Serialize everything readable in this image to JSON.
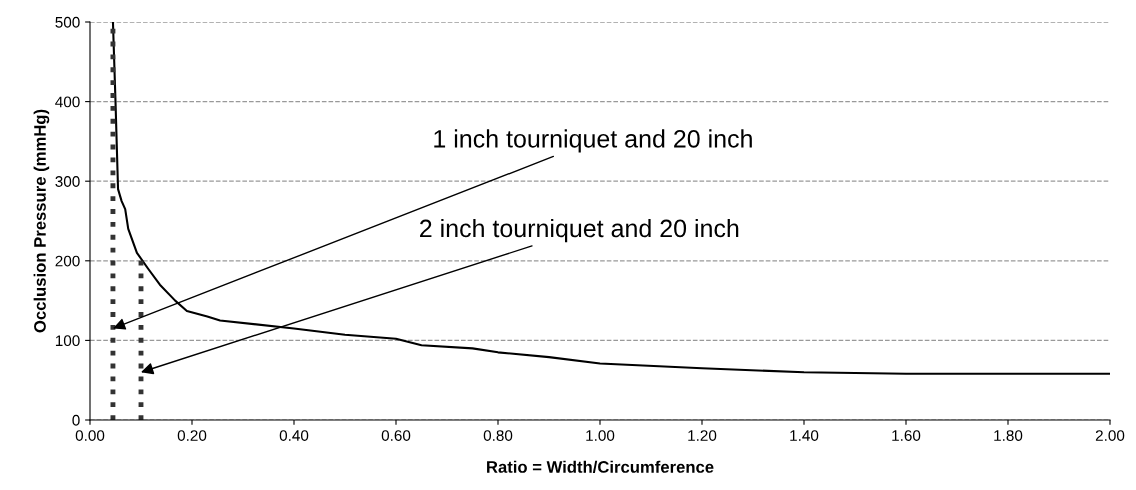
{
  "chart_data": {
    "type": "line",
    "xlabel": "Ratio = Width/Circumference",
    "ylabel": "Occlusion Pressure (mmHg)",
    "xlim": [
      0,
      2
    ],
    "xticks": [
      {
        "value": 0,
        "label": "0.00"
      },
      {
        "value": 0.2,
        "label": "0.20"
      },
      {
        "value": 0.4,
        "label": "0.40"
      },
      {
        "value": 0.6,
        "label": "0.60"
      },
      {
        "value": 0.8,
        "label": "0.80"
      },
      {
        "value": 1,
        "label": "1.00"
      },
      {
        "value": 1.2,
        "label": "1.20"
      },
      {
        "value": 1.4,
        "label": "1.40"
      },
      {
        "value": 1.6,
        "label": "1.60"
      },
      {
        "value": 1.8,
        "label": "1.80"
      },
      {
        "value": 2,
        "label": "2.00"
      }
    ],
    "ylim": [
      0,
      500
    ],
    "yticks": [
      0,
      100,
      200,
      300,
      400,
      500
    ],
    "grid": "y",
    "series": [
      {
        "color": "#000000",
        "line_style": "solid",
        "x": [
          0.045,
          0.05,
          0.055,
          0.062,
          0.069,
          0.075,
          0.092,
          0.114,
          0.137,
          0.167,
          0.19,
          0.23,
          0.255,
          0.4,
          0.5,
          0.6,
          0.65,
          0.75,
          0.8,
          0.9,
          1.0,
          1.2,
          1.4,
          1.6,
          1.8,
          2.0
        ],
        "values": [
          500,
          400,
          290,
          275,
          265,
          240,
          210,
          190,
          170,
          150,
          137,
          130,
          125,
          115,
          107,
          102,
          94,
          90,
          85,
          79,
          71,
          65,
          60,
          58,
          58,
          58
        ]
      },
      {
        "color": "#333333",
        "line_style": "dotted",
        "x": [
          0.045,
          0.045
        ],
        "values": [
          0,
          500
        ]
      },
      {
        "color": "#333333",
        "line_style": "dotted",
        "x": [
          0.1,
          0.1
        ],
        "values": [
          0,
          200
        ]
      }
    ],
    "annotations": [
      {
        "text": "1 inch tourniquet and 20 inch",
        "x": 0.045,
        "y": 115
      },
      {
        "text": "2 inch tourniquet and 20 inch",
        "x": 0.1,
        "y": 60
      }
    ]
  }
}
